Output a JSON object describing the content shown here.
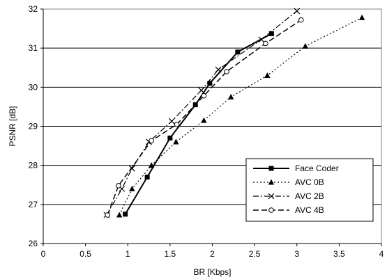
{
  "chart_data": {
    "type": "line",
    "xlabel": "BR [Kbps]",
    "ylabel": "PSNR [dB]",
    "xlim": [
      0,
      4
    ],
    "ylim": [
      26,
      32
    ],
    "x_ticks": [
      "0",
      "0.5",
      "1",
      "1.5",
      "2",
      "2.5",
      "3",
      "3.5",
      "4"
    ],
    "y_ticks": [
      "26",
      "27",
      "28",
      "29",
      "30",
      "31",
      "32"
    ],
    "grid": "horizontal",
    "legend_position": "lower-right",
    "series": [
      {
        "name": "Face Coder",
        "line_style": "solid",
        "marker": "square",
        "x": [
          0.97,
          1.23,
          1.5,
          1.8,
          1.97,
          2.3,
          2.7
        ],
        "y": [
          26.75,
          27.7,
          28.7,
          29.55,
          30.1,
          30.9,
          31.37
        ]
      },
      {
        "name": "AVC 0B",
        "line_style": "dotted",
        "marker": "triangle",
        "x": [
          0.9,
          1.05,
          1.28,
          1.57,
          1.9,
          2.22,
          2.65,
          3.1,
          3.77
        ],
        "y": [
          26.73,
          27.4,
          28.0,
          28.6,
          29.15,
          29.75,
          30.3,
          31.05,
          31.78
        ]
      },
      {
        "name": "AVC 2B",
        "line_style": "dashdot",
        "marker": "x",
        "x": [
          0.75,
          0.93,
          1.05,
          1.25,
          1.52,
          1.87,
          2.07,
          2.58,
          3.0
        ],
        "y": [
          26.73,
          27.4,
          27.92,
          28.6,
          29.13,
          29.92,
          30.45,
          31.22,
          31.95
        ]
      },
      {
        "name": "AVC 4B",
        "line_style": "dashed",
        "marker": "circle",
        "x": [
          0.76,
          0.89,
          1.28,
          1.58,
          1.9,
          2.17,
          2.63,
          3.05
        ],
        "y": [
          26.73,
          27.48,
          28.63,
          29.05,
          29.78,
          30.4,
          31.12,
          31.72
        ]
      }
    ]
  }
}
